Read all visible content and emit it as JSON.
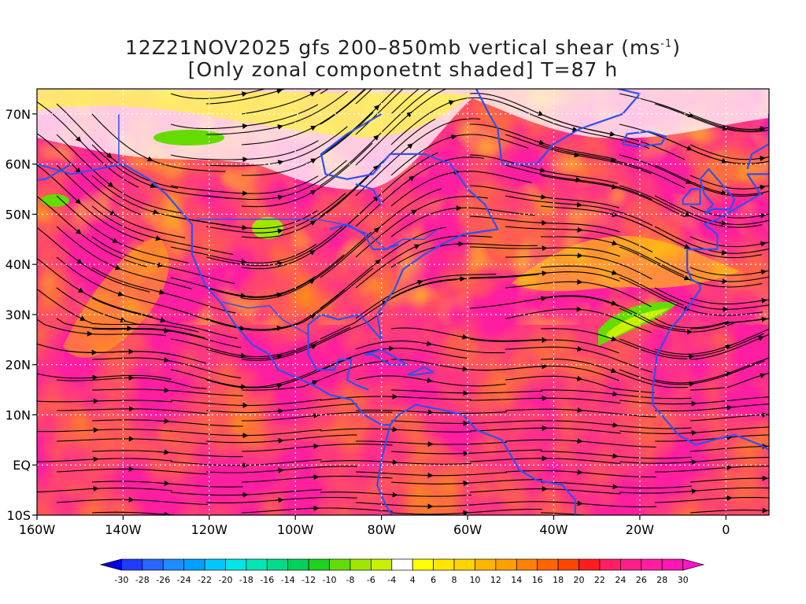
{
  "title": {
    "line1_prefix": "12Z21NOV2025 gfs 200–850mb vertical shear (ms",
    "line1_sup": "-1",
    "line1_suffix": ")",
    "line2": "[Only zonal componetnt shaded] T=87 h"
  },
  "lat_labels": [
    "70N",
    "60N",
    "50N",
    "40N",
    "30N",
    "20N",
    "10N",
    "EQ",
    "10S"
  ],
  "lat_values": [
    70,
    60,
    50,
    40,
    30,
    20,
    10,
    0,
    -10
  ],
  "lon_labels": [
    "160W",
    "140W",
    "120W",
    "100W",
    "80W",
    "60W",
    "40W",
    "20W",
    "0"
  ],
  "lon_values": [
    -160,
    -140,
    -120,
    -100,
    -80,
    -60,
    -40,
    -20,
    0
  ],
  "map_extent": {
    "lon_min": -160,
    "lon_max": 10,
    "lat_min": -10,
    "lat_max": 75
  },
  "colorbar": {
    "labels": [
      "-30",
      "-28",
      "-26",
      "-24",
      "-22",
      "-20",
      "-18",
      "-16",
      "-14",
      "-12",
      "-10",
      "-8",
      "-6",
      "-4",
      "4",
      "6",
      "8",
      "10",
      "12",
      "14",
      "16",
      "18",
      "20",
      "22",
      "24",
      "26",
      "28",
      "30"
    ],
    "colors": [
      "#0000e6",
      "#1e3cff",
      "#2864ff",
      "#1e8cff",
      "#00a0ff",
      "#00c8ff",
      "#00e6e6",
      "#00e6b4",
      "#00dc8c",
      "#00d25a",
      "#1ed21e",
      "#64dc00",
      "#a0e600",
      "#c8f000",
      "#ffffff",
      "#ffff00",
      "#ffe600",
      "#ffd200",
      "#ffb400",
      "#ffa000",
      "#ff8200",
      "#ff6400",
      "#ff4600",
      "#ff1e1e",
      "#ff1e64",
      "#ff1e8c",
      "#ff1ea0",
      "#ff14b4",
      "#ff14c8"
    ]
  },
  "colors": {
    "coast": "#3050f0",
    "streamline": "#000000",
    "contour": "#b030c0",
    "grid": "#ffffff"
  }
}
